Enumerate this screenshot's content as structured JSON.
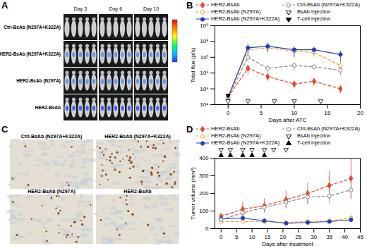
{
  "chart_data": [
    {
      "type": "line",
      "title": "B",
      "x_label": "Days after ATC",
      "y_label": "Total flux (p/s)",
      "log": "y",
      "xlim": [
        -2,
        20
      ],
      "xticks": [
        0,
        5,
        10,
        15,
        20
      ],
      "ylim": [
        10000,
        1000000000
      ],
      "yticks": [
        {
          "value": 10000,
          "label": "10⁴"
        },
        {
          "value": 100000,
          "label": "10⁵"
        },
        {
          "value": 1000000,
          "label": "10⁶"
        },
        {
          "value": 10000000,
          "label": "10⁷"
        },
        {
          "value": 100000000,
          "label": "10⁸"
        },
        {
          "value": 1000000000,
          "label": "10⁹"
        }
      ],
      "x": [
        0,
        3,
        6,
        10,
        13,
        17
      ],
      "series": [
        {
          "name": "HER2-BsAb",
          "color": "#e8462a",
          "marker": "diamond",
          "line_style": "dashed",
          "values": [
            30000,
            2000000,
            600000,
            200000,
            300000,
            100000
          ],
          "errors": [
            10000,
            1200000,
            300000,
            100000,
            150000,
            50000
          ]
        },
        {
          "name": "HER2-BsAb (N297A)",
          "color": "#f0a030",
          "marker": "open_circle",
          "line_style": "dashed",
          "values": [
            30000,
            30000000,
            40000000,
            25000000,
            20000000,
            3000000
          ],
          "errors": [
            10000,
            20000000,
            20000000,
            15000000,
            10000000,
            2000000
          ]
        },
        {
          "name": "HER2-BsAb (N297A+K322A)",
          "color": "#1f3fbf",
          "marker": "circle",
          "line_style": "solid",
          "values": [
            30000,
            40000000,
            50000000,
            30000000,
            30000000,
            15000000
          ],
          "errors": [
            10000,
            30000000,
            30000000,
            20000000,
            15000000,
            10000000
          ]
        },
        {
          "name": "Ctrl-BsAb (N297A+K322A)",
          "color": "#888888",
          "marker": "open_circle",
          "line_style": "dashed",
          "values": [
            30000,
            10000000,
            2000000,
            3000000,
            2500000,
            1500000
          ],
          "errors": [
            10000,
            5000000,
            1000000,
            1500000,
            1000000,
            800000
          ]
        }
      ],
      "bsab_injection": {
        "label": "BsAb injection",
        "marker": "triangle_down_open",
        "days": [
          0,
          3,
          7,
          10,
          14
        ]
      },
      "tcell_injection": {
        "label": "T-cell injection",
        "marker": "triangle_down",
        "days": [
          0
        ]
      }
    },
    {
      "type": "line",
      "title": "D",
      "x_label": "Days after treatment",
      "y_label": "Tumor volume (mm³)",
      "xlim": [
        -2,
        45
      ],
      "xticks": [
        0,
        5,
        10,
        15,
        20,
        25,
        30,
        35,
        40,
        45
      ],
      "ylim": [
        0,
        400
      ],
      "yticks": [
        0,
        100,
        200,
        300,
        400
      ],
      "x": [
        0,
        7,
        14,
        21,
        28,
        35,
        42
      ],
      "series": [
        {
          "name": "HER2-BsAb",
          "color": "#e8462a",
          "marker": "diamond",
          "line_style": "dashed",
          "values": [
            70,
            110,
            130,
            165,
            200,
            245,
            285
          ],
          "errors": [
            15,
            40,
            40,
            50,
            60,
            80,
            120
          ]
        },
        {
          "name": "HER2-BsAb (N297A)",
          "color": "#f0a030",
          "marker": "open_circle",
          "line_style": "dashed",
          "values": [
            40,
            40,
            40,
            35,
            40,
            45,
            60
          ],
          "errors": [
            10,
            10,
            10,
            10,
            10,
            12,
            25
          ]
        },
        {
          "name": "HER2-BsAb (N297A+K322A)",
          "color": "#1f3fbf",
          "marker": "circle",
          "line_style": "solid",
          "values": [
            55,
            60,
            45,
            30,
            35,
            40,
            50
          ],
          "errors": [
            10,
            10,
            10,
            8,
            8,
            10,
            15
          ]
        },
        {
          "name": "Ctrl-BsAb (N297A+K322A)",
          "color": "#888888",
          "marker": "open_circle",
          "line_style": "dashed",
          "values": [
            50,
            90,
            120,
            150,
            180,
            185,
            220
          ],
          "errors": [
            10,
            20,
            25,
            30,
            40,
            45,
            50
          ]
        }
      ],
      "bsab_injection": {
        "label": "BsAb injection",
        "marker": "triangle_down_open",
        "days": [
          0,
          3,
          7,
          10,
          14,
          17,
          21
        ]
      },
      "tcell_injection": {
        "label": "T-cell injection",
        "marker": "triangle_up",
        "days": [
          0,
          3,
          7,
          10,
          14
        ]
      }
    }
  ],
  "panel_a": {
    "title": "A",
    "columns": [
      "Day 3",
      "Day 6",
      "Day 10"
    ],
    "rows": [
      "Ctrl-BsAb (N297A+K322A)",
      "HER2-BsAb (N297A+K322A)",
      "HER2-BsAb (N297A)",
      "HER2-BsAb"
    ]
  },
  "panel_c": {
    "title": "C",
    "images": [
      "Ctrl-BsAb (N297A+K322A)",
      "HER2-BsAb (N297A+K322A)",
      "HER2-BsAb (N297A)",
      "HER2-BsAb"
    ]
  }
}
